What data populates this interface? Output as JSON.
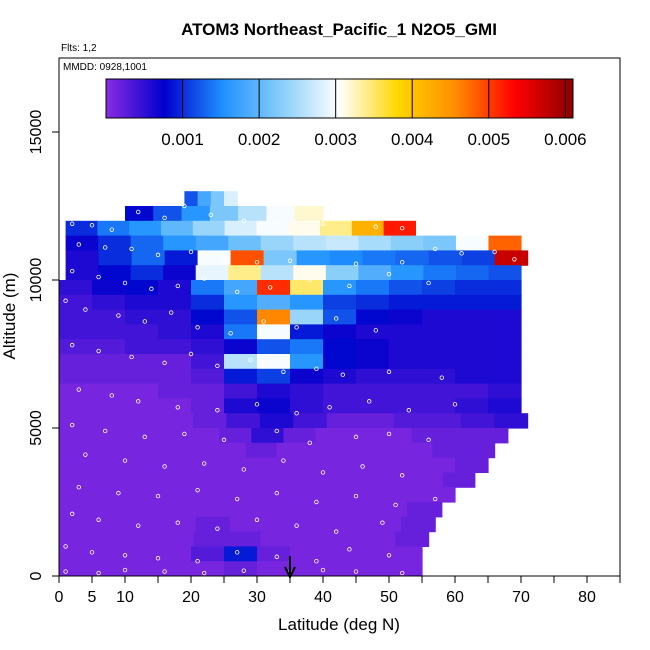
{
  "header": {
    "title": "ATOM3 Northeast_Pacific_1 N2O5_GMI",
    "flights_note": "Flts: 1,2",
    "date_note": "MMDD: 0928,1001"
  },
  "chart_data": {
    "type": "heatmap",
    "title": "ATOM3 Northeast_Pacific_1 N2O5_GMI",
    "xlabel": "Latitude (deg N)",
    "ylabel": "Altitude (m)",
    "xlim": [
      0,
      85
    ],
    "ylim": [
      0,
      17500
    ],
    "x_tick_values": [
      0,
      5,
      10,
      20,
      30,
      40,
      50,
      60,
      70,
      80
    ],
    "x_tick_labels": [
      "0",
      "5",
      "10",
      "20",
      "30",
      "40",
      "50",
      "60",
      "70",
      "80"
    ],
    "x_minor_ticks": [
      15,
      25,
      35,
      45,
      55,
      65,
      75,
      85
    ],
    "y_tick_values": [
      0,
      5000,
      10000,
      15000
    ],
    "y_tick_labels": [
      "0",
      "5000",
      "10000",
      "15000"
    ],
    "grid": false,
    "colorbar": {
      "position": "top",
      "range": [
        0,
        0.0061
      ],
      "tick_values": [
        0.001,
        0.002,
        0.003,
        0.004,
        0.005,
        0.006
      ],
      "tick_labels": [
        "0.001",
        "0.002",
        "0.003",
        "0.004",
        "0.005",
        "0.006"
      ],
      "colors": [
        "#8a2be2",
        "#0000cd",
        "#1e90ff",
        "#87cefa",
        "#ffffff",
        "#ffd700",
        "#ff8c00",
        "#ff0000",
        "#8b0000"
      ]
    },
    "arrow_marker_latitude": 35,
    "curtain_rows": [
      {
        "alt": [
          12500,
          13000
        ],
        "lat": [
          19,
          27
        ],
        "vals": [
          0.0012,
          0.0018,
          0.0022,
          0.0028
        ]
      },
      {
        "alt": [
          12000,
          12500
        ],
        "lat": [
          10,
          40
        ],
        "vals": [
          0.0008,
          0.0012,
          0.0016,
          0.0022,
          0.0026,
          0.003,
          0.0032
        ]
      },
      {
        "alt": [
          11500,
          12000
        ],
        "lat": [
          1,
          54
        ],
        "vals": [
          0.001,
          0.0014,
          0.0016,
          0.002,
          0.0024,
          0.0028,
          0.003,
          0.0031,
          0.0034,
          0.0042,
          0.0052
        ]
      },
      {
        "alt": [
          11000,
          11500
        ],
        "lat": [
          1,
          70
        ],
        "vals": [
          0.0007,
          0.001,
          0.0013,
          0.0016,
          0.0018,
          0.0021,
          0.0024,
          0.0026,
          0.0027,
          0.0025,
          0.0023,
          0.0022,
          0.003,
          0.0048
        ]
      },
      {
        "alt": [
          10500,
          11000
        ],
        "lat": [
          1,
          71
        ],
        "vals": [
          0.0006,
          0.001,
          0.0013,
          0.0009,
          0.003,
          0.0049,
          0.0022,
          0.0016,
          0.0015,
          0.0014,
          0.0013,
          0.0012,
          0.0011,
          0.0057
        ]
      },
      {
        "alt": [
          10000,
          10500
        ],
        "lat": [
          1,
          70
        ],
        "vals": [
          0.0006,
          0.0008,
          0.001,
          0.0007,
          0.0029,
          0.0034,
          0.0026,
          0.0031,
          0.0023,
          0.0019,
          0.0016,
          0.0014,
          0.0013,
          0.0012
        ]
      },
      {
        "alt": [
          9500,
          10000
        ],
        "lat": [
          0,
          70
        ],
        "vals": [
          0.0005,
          0.0007,
          0.0008,
          0.0006,
          0.0014,
          0.0018,
          0.0051,
          0.0035,
          0.0016,
          0.0014,
          0.0012,
          0.0011,
          0.001,
          0.001
        ]
      },
      {
        "alt": [
          9000,
          9500
        ],
        "lat": [
          0,
          70
        ],
        "vals": [
          0.0004,
          0.0005,
          0.0006,
          0.0006,
          0.001,
          0.0016,
          0.0019,
          0.0016,
          0.0011,
          0.001,
          0.0009,
          0.0009,
          0.0009,
          0.0009
        ]
      },
      {
        "alt": [
          8500,
          9000
        ],
        "lat": [
          0,
          70
        ],
        "vals": [
          0.0004,
          0.0004,
          0.0005,
          0.0005,
          0.0008,
          0.0012,
          0.0046,
          0.0024,
          0.0012,
          0.0008,
          0.0007,
          0.0006,
          0.0006,
          0.0006
        ]
      },
      {
        "alt": [
          8000,
          8500
        ],
        "lat": [
          0,
          70
        ],
        "vals": [
          0.0004,
          0.0004,
          0.0004,
          0.0005,
          0.0006,
          0.0014,
          0.003,
          0.0009,
          0.0007,
          0.0006,
          0.0006,
          0.0006,
          0.0006,
          0.0006
        ]
      },
      {
        "alt": [
          7500,
          8000
        ],
        "lat": [
          0,
          70
        ],
        "vals": [
          0.0003,
          0.0003,
          0.0004,
          0.0004,
          0.0005,
          0.0007,
          0.0012,
          0.0014,
          0.0008,
          0.0007,
          0.0006,
          0.0006,
          0.0006,
          0.0006
        ]
      },
      {
        "alt": [
          7000,
          7500
        ],
        "lat": [
          0,
          70
        ],
        "vals": [
          0.0002,
          0.0002,
          0.0002,
          0.0002,
          0.0004,
          0.0026,
          0.003,
          0.0016,
          0.0008,
          0.0007,
          0.0006,
          0.0006,
          0.0006,
          0.0006
        ]
      },
      {
        "alt": [
          6500,
          7000
        ],
        "lat": [
          0,
          70
        ],
        "vals": [
          0.0002,
          0.0002,
          0.0002,
          0.0002,
          0.0003,
          0.0009,
          0.0011,
          0.0007,
          0.0006,
          0.0005,
          0.0005,
          0.0005,
          0.0006,
          0.0006
        ]
      },
      {
        "alt": [
          6000,
          6500
        ],
        "lat": [
          0,
          70
        ],
        "vals": [
          0.0001,
          0.0001,
          0.0001,
          0.0002,
          0.0002,
          0.0004,
          0.0006,
          0.0005,
          0.0004,
          0.0004,
          0.0004,
          0.0004,
          0.0004,
          0.0005
        ]
      },
      {
        "alt": [
          5500,
          6000
        ],
        "lat": [
          0,
          70
        ],
        "vals": [
          0.0001,
          0.0001,
          0.0001,
          0.0001,
          0.0002,
          0.0006,
          0.0007,
          0.0005,
          0.0004,
          0.0004,
          0.0004,
          0.0004,
          0.0005,
          0.0006
        ]
      },
      {
        "alt": [
          5000,
          5500
        ],
        "lat": [
          0,
          71
        ],
        "vals": [
          0.0001,
          0.0001,
          0.0001,
          0.0001,
          0.0002,
          0.0004,
          0.0006,
          0.0004,
          0.0002,
          0.0002,
          0.0003,
          0.0003,
          0.0004,
          0.0005
        ]
      },
      {
        "alt": [
          4500,
          5000
        ],
        "lat": [
          0,
          68
        ],
        "vals": [
          0.0001,
          0.0001,
          0.0001,
          0.0001,
          0.0001,
          0.0002,
          0.0005,
          0.0002,
          0.0001,
          0.0001,
          0.0001,
          0.0002,
          0.0002,
          0.0002
        ]
      },
      {
        "alt": [
          4000,
          4500
        ],
        "lat": [
          0,
          66
        ],
        "vals": [
          0.0001,
          0.0001,
          0.0001,
          0.0001,
          0.0001,
          0.0001,
          0.0002,
          0.0001,
          0.0001,
          0.0001,
          0.0001,
          0.0001,
          0.0002,
          0.0002
        ]
      },
      {
        "alt": [
          3500,
          4000
        ],
        "lat": [
          0,
          65
        ],
        "vals": [
          0.0001,
          0.0001,
          0.0001,
          0.0001,
          0.0001,
          0.0001,
          0.0001,
          0.0001,
          0.0001,
          0.0001,
          0.0001,
          0.0001,
          0.0002
        ]
      },
      {
        "alt": [
          3000,
          3500
        ],
        "lat": [
          0,
          63
        ],
        "vals": [
          0.0001,
          0.0001,
          0.0001,
          0.0001,
          0.0001,
          0.0001,
          0.0001,
          0.0001,
          0.0001,
          0.0001,
          0.0001,
          0.0001,
          0.0002
        ]
      },
      {
        "alt": [
          2500,
          3000
        ],
        "lat": [
          0,
          60
        ],
        "vals": [
          0.0001,
          0.0001,
          0.0001,
          0.0001,
          0.0001,
          0.0001,
          0.0001,
          0.0001,
          0.0001,
          0.0001,
          0.0001,
          0.0001
        ]
      },
      {
        "alt": [
          2000,
          2500
        ],
        "lat": [
          0,
          58
        ],
        "vals": [
          0.0001,
          0.0001,
          0.0001,
          0.0001,
          0.0001,
          0.0001,
          0.0001,
          0.0001,
          0.0001,
          0.0001,
          0.0002
        ]
      },
      {
        "alt": [
          1500,
          2000
        ],
        "lat": [
          0,
          57
        ],
        "vals": [
          0.0001,
          0.0001,
          0.0001,
          0.0001,
          0.0002,
          0.0001,
          0.0001,
          0.0001,
          0.0001,
          0.0001,
          0.0002
        ]
      },
      {
        "alt": [
          1000,
          1500
        ],
        "lat": [
          0,
          56
        ],
        "vals": [
          0.0001,
          0.0001,
          0.0001,
          0.0001,
          0.0002,
          0.0002,
          0.0001,
          0.0001,
          0.0001,
          0.0001,
          0.0002
        ]
      },
      {
        "alt": [
          500,
          1000
        ],
        "lat": [
          0,
          55
        ],
        "vals": [
          0.0001,
          0.0001,
          0.0001,
          0.0001,
          0.0003,
          0.0009,
          0.0002,
          0.0001,
          0.0001,
          0.0001,
          0.0001
        ]
      },
      {
        "alt": [
          0,
          500
        ],
        "lat": [
          0,
          55
        ],
        "vals": [
          0.0001,
          0.0001,
          0.0001,
          0.0001,
          0.0001,
          0.0002,
          0.0001,
          0.0001,
          0.0001,
          0.0001,
          0.0001
        ]
      }
    ],
    "sample_points": [
      [
        2,
        11900
      ],
      [
        5,
        11850
      ],
      [
        8,
        11700
      ],
      [
        12,
        12300
      ],
      [
        16,
        12100
      ],
      [
        19,
        12500
      ],
      [
        23,
        12200
      ],
      [
        28,
        12000
      ],
      [
        33,
        11950
      ],
      [
        40,
        11900
      ],
      [
        48,
        11800
      ],
      [
        52,
        11750
      ],
      [
        3,
        11200
      ],
      [
        7,
        11100
      ],
      [
        11,
        11050
      ],
      [
        15,
        10850
      ],
      [
        20,
        10950
      ],
      [
        25,
        10700
      ],
      [
        30,
        10600
      ],
      [
        35,
        10650
      ],
      [
        45,
        10550
      ],
      [
        52,
        10600
      ],
      [
        57,
        11050
      ],
      [
        61,
        10900
      ],
      [
        66,
        10950
      ],
      [
        69,
        10700
      ],
      [
        2,
        10300
      ],
      [
        6,
        10100
      ],
      [
        10,
        9900
      ],
      [
        14,
        9700
      ],
      [
        18,
        9800
      ],
      [
        22,
        10050
      ],
      [
        27,
        9600
      ],
      [
        32,
        9750
      ],
      [
        38,
        10000
      ],
      [
        44,
        9800
      ],
      [
        50,
        10200
      ],
      [
        56,
        9900
      ],
      [
        1,
        9300
      ],
      [
        4,
        9000
      ],
      [
        9,
        8800
      ],
      [
        13,
        8600
      ],
      [
        17,
        8900
      ],
      [
        21,
        8400
      ],
      [
        26,
        8200
      ],
      [
        31,
        8600
      ],
      [
        36,
        8400
      ],
      [
        42,
        8700
      ],
      [
        48,
        8300
      ],
      [
        2,
        7800
      ],
      [
        6,
        7600
      ],
      [
        11,
        7400
      ],
      [
        16,
        7200
      ],
      [
        20,
        7500
      ],
      [
        24,
        7100
      ],
      [
        29,
        7300
      ],
      [
        34,
        6900
      ],
      [
        39,
        7000
      ],
      [
        43,
        6800
      ],
      [
        50,
        6900
      ],
      [
        58,
        6700
      ],
      [
        3,
        6300
      ],
      [
        8,
        6100
      ],
      [
        12,
        5900
      ],
      [
        18,
        5700
      ],
      [
        24,
        5600
      ],
      [
        30,
        5800
      ],
      [
        36,
        5500
      ],
      [
        41,
        5700
      ],
      [
        47,
        5900
      ],
      [
        53,
        5600
      ],
      [
        60,
        5800
      ],
      [
        2,
        5100
      ],
      [
        7,
        4900
      ],
      [
        13,
        4700
      ],
      [
        19,
        4800
      ],
      [
        25,
        4600
      ],
      [
        33,
        4900
      ],
      [
        38,
        4500
      ],
      [
        45,
        4700
      ],
      [
        50,
        4800
      ],
      [
        56,
        4600
      ],
      [
        4,
        4100
      ],
      [
        10,
        3900
      ],
      [
        16,
        3700
      ],
      [
        22,
        3800
      ],
      [
        28,
        3600
      ],
      [
        34,
        3900
      ],
      [
        40,
        3500
      ],
      [
        46,
        3700
      ],
      [
        52,
        3400
      ],
      [
        3,
        3000
      ],
      [
        9,
        2800
      ],
      [
        15,
        2700
      ],
      [
        21,
        2900
      ],
      [
        27,
        2600
      ],
      [
        33,
        2800
      ],
      [
        39,
        2500
      ],
      [
        45,
        2700
      ],
      [
        51,
        2400
      ],
      [
        57,
        2600
      ],
      [
        2,
        2100
      ],
      [
        6,
        1900
      ],
      [
        12,
        1700
      ],
      [
        18,
        1800
      ],
      [
        24,
        1600
      ],
      [
        30,
        1900
      ],
      [
        36,
        1700
      ],
      [
        42,
        1500
      ],
      [
        49,
        1800
      ],
      [
        1,
        1000
      ],
      [
        5,
        800
      ],
      [
        10,
        700
      ],
      [
        15,
        600
      ],
      [
        21,
        500
      ],
      [
        27,
        800
      ],
      [
        33,
        650
      ],
      [
        39,
        500
      ],
      [
        44,
        900
      ],
      [
        50,
        700
      ],
      [
        1,
        150
      ],
      [
        6,
        100
      ],
      [
        10,
        200
      ],
      [
        16,
        150
      ],
      [
        22,
        100
      ],
      [
        28,
        180
      ],
      [
        35,
        120
      ],
      [
        40,
        200
      ],
      [
        45,
        150
      ],
      [
        52,
        100
      ]
    ]
  }
}
